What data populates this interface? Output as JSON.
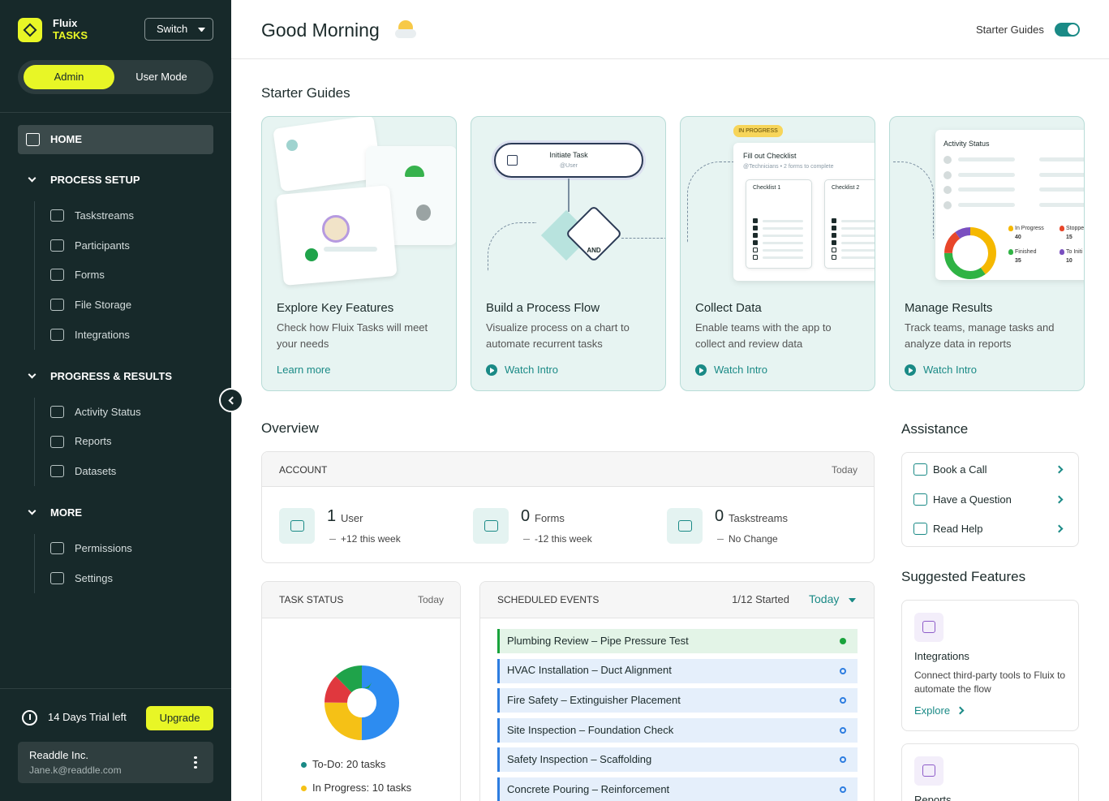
{
  "sidebar": {
    "brand": {
      "name": "Fluix",
      "product": "TASKS"
    },
    "switch": "Switch",
    "modes": [
      "Admin",
      "User Mode"
    ],
    "home": "HOME",
    "sections": [
      {
        "title": "PROCESS SETUP",
        "items": [
          "Taskstreams",
          "Participants",
          "Forms",
          "File Storage",
          "Integrations"
        ]
      },
      {
        "title": "PROGRESS & RESULTS",
        "items": [
          "Activity Status",
          "Reports",
          "Datasets"
        ]
      },
      {
        "title": "MORE",
        "items": [
          "Permissions",
          "Settings"
        ]
      }
    ],
    "trial": "14 Days Trial left",
    "upgrade": "Upgrade",
    "account": {
      "name": "Readdle Inc.",
      "email": "Jane.k@readdle.com"
    }
  },
  "header": {
    "greeting": "Good Morning",
    "toggle_label": "Starter Guides"
  },
  "starter_guides": {
    "title": "Starter Guides",
    "cards": [
      {
        "title": "Explore Key Features",
        "text": "Check how Fluix Tasks will meet your needs",
        "link": "Learn more"
      },
      {
        "title": "Build a Process Flow",
        "text": "Visualize process on a chart to automate recurrent tasks",
        "link": "Watch Intro"
      },
      {
        "title": "Collect Data",
        "text": "Enable teams with the app to collect and review data",
        "link": "Watch Intro"
      },
      {
        "title": "Manage Results",
        "text": "Track teams, manage tasks and analyze data in reports",
        "link": "Watch Intro"
      }
    ],
    "flow": {
      "start": "Initiate Task",
      "assignee": "@User",
      "gate": "AND"
    },
    "checklist": {
      "badge": "IN PROGRESS",
      "title": "Fill out Checklist",
      "subtitle": "@Technicians • 2 forms to complete",
      "forms": [
        "Checklist 1",
        "Checklist 2"
      ]
    },
    "activity_status": {
      "title": "Activity Status",
      "items": [
        {
          "label": "In Progress",
          "value": 40,
          "color": "#f5b800"
        },
        {
          "label": "Finished",
          "value": 35,
          "color": "#2fb344"
        },
        {
          "label": "Stoppe",
          "value": 15,
          "color": "#e8462a"
        },
        {
          "label": "To Initi",
          "value": 10,
          "color": "#7a4fc0"
        }
      ]
    }
  },
  "overview": {
    "title": "Overview",
    "account": {
      "title": "ACCOUNT",
      "period": "Today",
      "stats": [
        {
          "value": 1,
          "unit": "User",
          "change": "+12 this week"
        },
        {
          "value": 0,
          "unit": "Forms",
          "change": "-12 this week"
        },
        {
          "value": 0,
          "unit": "Taskstreams",
          "change": "No Change"
        }
      ]
    }
  },
  "task_status": {
    "title": "TASK STATUS",
    "period": "Today",
    "segments": [
      {
        "value": 20,
        "color": "#2d8cf0"
      },
      {
        "value": 10,
        "color": "#f5c116"
      },
      {
        "value": 5,
        "color": "#e0383e"
      },
      {
        "value": 5,
        "color": "#1fa34a"
      }
    ],
    "legend": [
      {
        "label": "To-Do: 20 tasks",
        "color": "#1a8a86"
      },
      {
        "label": "In Progress: 10 tasks",
        "color": "#f5c116"
      }
    ]
  },
  "scheduled_events": {
    "title": "SCHEDULED EVENTS",
    "started": "1/12 Started",
    "period": "Today",
    "events": [
      {
        "title": "Plumbing Review – Pipe Pressure Test",
        "color": "#19a33c"
      },
      {
        "title": "HVAC Installation – Duct Alignment",
        "color": "#2d7de0"
      },
      {
        "title": "Fire Safety – Extinguisher Placement",
        "color": "#2d7de0"
      },
      {
        "title": "Site Inspection – Foundation Check",
        "color": "#2d7de0"
      },
      {
        "title": "Safety Inspection – Scaffolding",
        "color": "#2d7de0"
      },
      {
        "title": "Concrete Pouring – Reinforcement",
        "color": "#2d7de0"
      }
    ]
  },
  "assistance": {
    "title": "Assistance",
    "items": [
      "Book a Call",
      "Have a Question",
      "Read Help"
    ]
  },
  "suggested": {
    "title": "Suggested Features",
    "items": [
      {
        "title": "Integrations",
        "text": "Connect third-party tools to Fluix to automate the flow",
        "link": "Explore"
      },
      {
        "title": "Reports"
      }
    ]
  }
}
